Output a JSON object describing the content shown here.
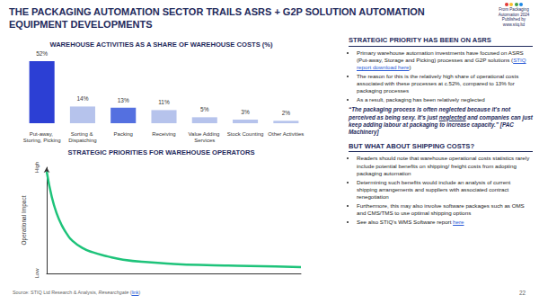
{
  "header": {
    "title": "THE PACKAGING AUTOMATION SECTOR TRAILS ASRS + G2P SOLUTION AUTOMATION EQUIPMENT DEVELOPMENTS",
    "logo": [
      "From Packaging",
      "Automation 2024",
      "Published by",
      "www.stiq.ltd"
    ]
  },
  "chart_data": [
    {
      "type": "bar",
      "title": "WAREHOUSE ACTIVITIES AS A SHARE OF WAREHOUSE COSTS (%)",
      "categories": [
        "Put-away, Storing, Picking",
        "Sorting & Dispatching",
        "Packing",
        "Receiving",
        "Value Adding Services",
        "Stock Counting",
        "Other Activities"
      ],
      "values": [
        52,
        14,
        13,
        11,
        5,
        3,
        2
      ],
      "value_labels": [
        "52%",
        "14%",
        "13%",
        "11%",
        "5%",
        "3%",
        "2%"
      ],
      "colors": [
        "#2c3fd4",
        "#b6c3ec",
        "#5470e0",
        "#b6c3ec",
        "#b6c3ec",
        "#b6c3ec",
        "#b6c3ec"
      ],
      "ylim": [
        0,
        55
      ],
      "grid": false,
      "data_labels": true,
      "tick_labels": "x"
    },
    {
      "type": "line",
      "title": "STRATEGIC PRIORITIES FOR WAREHOUSE OPERATORS",
      "y_label": "Operational Impact",
      "x": [
        0,
        2,
        4,
        6,
        8,
        10,
        14,
        18,
        24,
        30,
        40,
        50,
        60,
        70,
        80,
        90,
        100
      ],
      "values": [
        96,
        72,
        56,
        45,
        37,
        31,
        24,
        20,
        16,
        13,
        10.5,
        9,
        8,
        7.5,
        7,
        6.5,
        6
      ],
      "color": "#1ec37a",
      "xlim": [
        0,
        100
      ],
      "ylim": [
        0,
        100
      ],
      "yticks": [
        {
          "value": 0,
          "label": "Low"
        },
        {
          "value": 100,
          "label": "High"
        }
      ],
      "grid": false,
      "tick_labels": "y"
    }
  ],
  "sidebar": [
    {
      "heading": "STRATEGIC PRIORITY HAS BEEN ON ASRS",
      "bullets": [
        [
          {
            "text": "Primary warehouse automation investments have focused on ASRS (Put-away, Storage and Picking) processes and G2P solutions ("
          },
          {
            "text": "STIQ report download here",
            "link": true
          },
          {
            "text": ")"
          }
        ],
        [
          {
            "text": "The reason for this is the relatively high share of operational costs associated with these processes at c.52%, compared to 13% for packaging processes"
          }
        ],
        [
          {
            "text": "As a result, packaging has been relatively neglected"
          }
        ]
      ],
      "quote": [
        {
          "text": "“The packaging process is often neglected because it's not perceived as being sexy. It's just "
        },
        {
          "text": "neglected",
          "underline": true
        },
        {
          "text": " and companies can just keep adding labour at packaging to increase capacity.” [PAC Machinery]"
        }
      ]
    },
    {
      "heading": "BUT WHAT ABOUT SHIPPING COSTS?",
      "bullets": [
        [
          {
            "text": "Readers should note that warehouse operational costs statistics rarely include potential benefits on shipping/ freight costs from adopting packaging automation"
          }
        ],
        [
          {
            "text": "Determining such benefits would include an analysis of current shipping arrangements and suppliers with associated contract renegotiation"
          }
        ],
        [
          {
            "text": "Furthermore, this may also involve software packages such as OMS and CMS/TMS to use optimal shipping options"
          }
        ],
        [
          {
            "text": "See also STIQ's WMS Software report "
          },
          {
            "text": "here",
            "link": true
          }
        ]
      ]
    }
  ],
  "source": [
    {
      "text": "Source: STIQ Ltd Research & Analysis, "
    },
    {
      "text": "Researchgate",
      "italic": true
    },
    {
      "text": " ("
    },
    {
      "text": "link",
      "link": true
    },
    {
      "text": ")"
    }
  ],
  "page": "22"
}
